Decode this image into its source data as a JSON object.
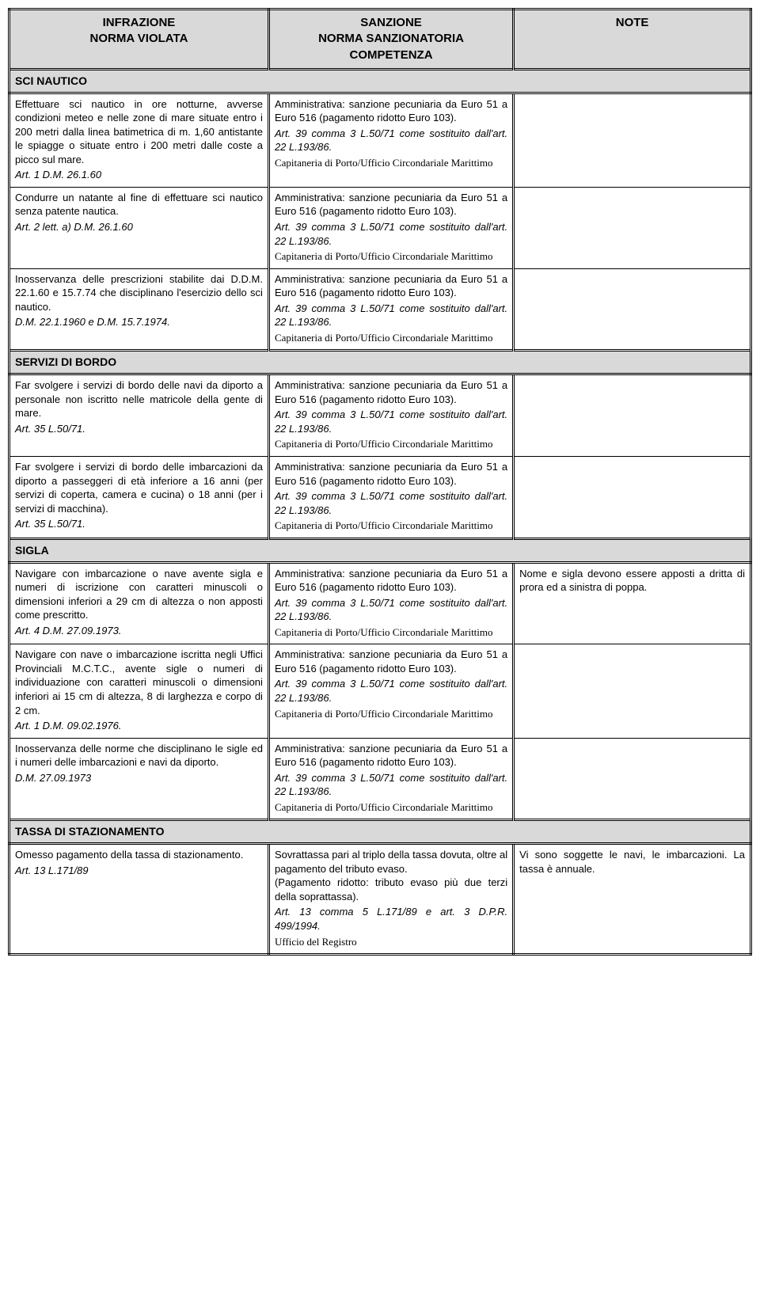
{
  "headers": {
    "col1": "INFRAZIONE\nNORMA VIOLATA",
    "col2": "SANZIONE\nNORMA SANZIONATORIA\nCOMPETENZA",
    "col3": "NOTE"
  },
  "sections": [
    {
      "title": "SCI NAUTICO",
      "rows": [
        {
          "inf": "Effettuare sci nautico in ore notturne, avverse condizioni meteo e nelle zone di mare situate entro i 200 metri dalla linea batimetrica di m. 1,60 antistante le spiagge o situate entro i 200 metri dalle coste a picco sul mare.",
          "inf_art": "Art. 1 D.M. 26.1.60",
          "san": "Amministrativa: sanzione pecuniaria da Euro 51 a Euro 516 (pagamento ridotto Euro 103).",
          "san_art": "Art. 39 comma 3 L.50/71 come sostituito dall'art. 22 L.193/86.",
          "san_comp": "Capitaneria di Porto/Ufficio Circondariale Marittimo",
          "note": ""
        },
        {
          "inf": "Condurre un natante al fine di effettuare sci nautico senza patente nautica.",
          "inf_art": "Art. 2 lett. a) D.M. 26.1.60",
          "san": "Amministrativa: sanzione pecuniaria da Euro 51 a Euro 516 (pagamento ridotto Euro 103).",
          "san_art": "Art. 39 comma 3 L.50/71 come sostituito dall'art. 22 L.193/86.",
          "san_comp": "Capitaneria di Porto/Ufficio Circondariale Marittimo",
          "note": ""
        },
        {
          "inf": "Inosservanza delle prescrizioni stabilite dai D.D.M. 22.1.60 e 15.7.74 che disciplinano l'esercizio dello sci nautico.",
          "inf_art": "D.M. 22.1.1960 e D.M. 15.7.1974.",
          "san": "Amministrativa: sanzione pecuniaria da Euro 51 a Euro 516 (pagamento ridotto Euro 103).",
          "san_art": "Art. 39 comma 3 L.50/71 come sostituito dall'art. 22 L.193/86.",
          "san_comp": "Capitaneria di Porto/Ufficio Circondariale Marittimo",
          "note": ""
        }
      ]
    },
    {
      "title": "SERVIZI DI BORDO",
      "rows": [
        {
          "inf": "Far svolgere i servizi di bordo delle navi da diporto a personale non iscritto nelle matricole della gente di mare.",
          "inf_art": "Art. 35 L.50/71.",
          "san": "Amministrativa: sanzione pecuniaria da Euro 51 a Euro 516 (pagamento ridotto Euro 103).",
          "san_art": "Art. 39 comma 3 L.50/71 come sostituito dall'art. 22 L.193/86.",
          "san_comp": "Capitaneria di Porto/Ufficio Circondariale Marittimo",
          "note": ""
        },
        {
          "inf": "Far svolgere i servizi di bordo delle imbarcazioni da diporto a passeggeri di età inferiore a 16 anni (per servizi di coperta, camera e cucina) o 18 anni (per i servizi di macchina).",
          "inf_art": "Art. 35 L.50/71.",
          "san": "Amministrativa: sanzione pecuniaria da Euro 51 a Euro 516 (pagamento ridotto Euro 103).",
          "san_art": "Art. 39 comma 3 L.50/71 come sostituito dall'art. 22 L.193/86.",
          "san_comp": "Capitaneria di Porto/Ufficio Circondariale Marittimo",
          "note": ""
        }
      ]
    },
    {
      "title": "SIGLA",
      "rows": [
        {
          "inf": "Navigare con imbarcazione o nave avente sigla e numeri di iscrizione con caratteri minuscoli o dimensioni inferiori a 29 cm di altezza o non apposti come prescritto.",
          "inf_art": "Art. 4 D.M. 27.09.1973.",
          "san": "Amministrativa: sanzione pecuniaria da Euro 51 a Euro 516 (pagamento ridotto Euro 103).",
          "san_art": "Art. 39 comma 3 L.50/71 come sostituito dall'art. 22 L.193/86.",
          "san_comp": "Capitaneria di Porto/Ufficio Circondariale Marittimo",
          "note": "Nome e sigla devono essere apposti a dritta di prora ed a sinistra di poppa."
        },
        {
          "inf": "Navigare con nave o imbarcazione iscritta negli Uffici Provinciali M.C.T.C., avente sigle o numeri di individuazione con caratteri minuscoli o dimensioni inferiori ai 15 cm di altezza, 8 di larghezza e corpo di 2 cm.",
          "inf_art": "Art. 1 D.M. 09.02.1976.",
          "san": "Amministrativa: sanzione pecuniaria da Euro 51 a Euro 516 (pagamento ridotto Euro 103).",
          "san_art": "Art. 39 comma 3 L.50/71 come sostituito dall'art. 22 L.193/86.",
          "san_comp": "Capitaneria di Porto/Ufficio Circondariale Marittimo",
          "note": ""
        },
        {
          "inf": "Inosservanza delle norme che disciplinano le sigle ed i numeri delle imbarcazioni e navi da diporto.",
          "inf_art": "D.M. 27.09.1973",
          "san": "Amministrativa: sanzione pecuniaria da Euro 51 a Euro 516 (pagamento ridotto Euro 103).",
          "san_art": "Art. 39 comma 3 L.50/71 come sostituito dall'art. 22 L.193/86.",
          "san_comp": "Capitaneria di Porto/Ufficio Circondariale Marittimo",
          "note": ""
        }
      ]
    },
    {
      "title": "TASSA DI STAZIONAMENTO",
      "rows": [
        {
          "inf": "Omesso pagamento della tassa di stazionamento.",
          "inf_art": "Art. 13 L.171/89",
          "san": "Sovrattassa pari al triplo della tassa dovuta, oltre al pagamento del tributo evaso.\n(Pagamento ridotto: tributo evaso più due terzi della soprattassa).",
          "san_art": "Art. 13 comma 5 L.171/89 e art. 3 D.P.R. 499/1994.",
          "san_comp": "Ufficio del Registro",
          "note": "Vi sono soggette le navi, le imbarcazioni. La tassa è annuale."
        }
      ]
    }
  ],
  "style": {
    "header_bg": "#d9d9d9",
    "section_bg": "#d9d9d9",
    "border_color": "#000000",
    "body_bg": "#ffffff",
    "header_fontsize": 15,
    "body_fontsize": 13,
    "font_family": "Arial"
  }
}
